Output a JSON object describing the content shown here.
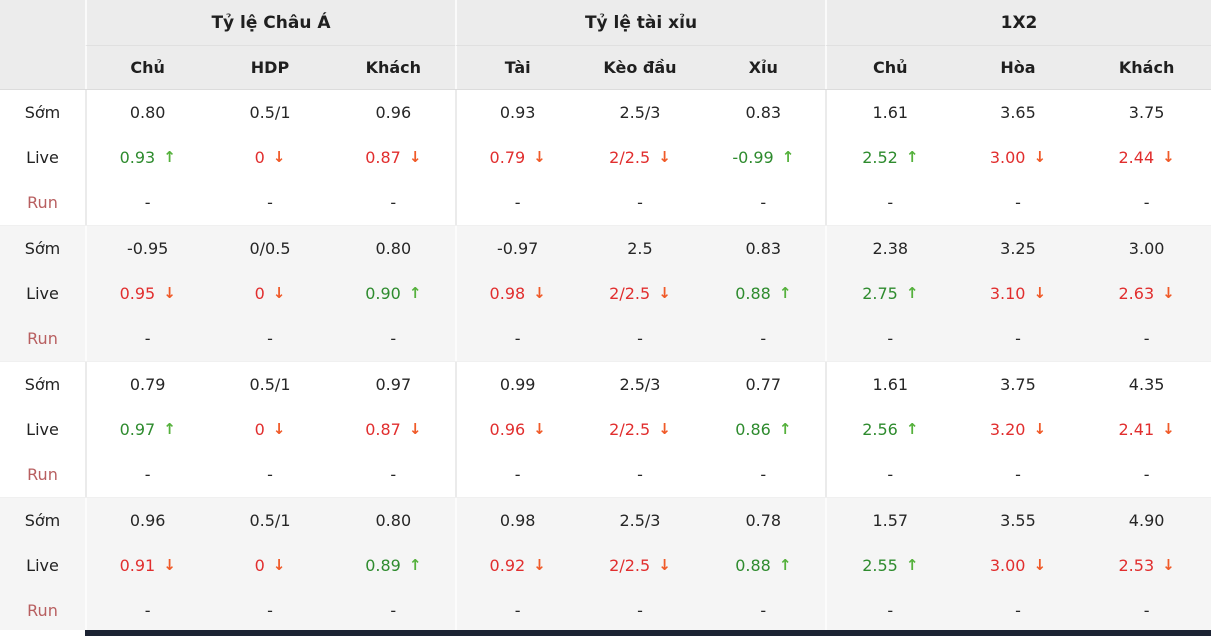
{
  "icons": {
    "up": "↑",
    "down": "↓"
  },
  "colors": {
    "up_text": "#2e8b2e",
    "up_arrow": "#55b13c",
    "down_text": "#e12e2e",
    "down_arrow": "#f05a28",
    "run_label": "#b85f60",
    "header_bg": "#ececec",
    "alt_block_bg": "#f5f5f5",
    "footer_bar": "#1c2333"
  },
  "table": {
    "groups": [
      {
        "label": "Tỷ lệ Châu Á",
        "columns": [
          "Chủ",
          "HDP",
          "Khách"
        ]
      },
      {
        "label": "Tỷ lệ tài xỉu",
        "columns": [
          "Tài",
          "Kèo đầu",
          "Xỉu"
        ]
      },
      {
        "label": "1X2",
        "columns": [
          "Chủ",
          "Hòa",
          "Khách"
        ]
      }
    ],
    "row_labels": {
      "som": "Sớm",
      "live": "Live",
      "run": "Run"
    },
    "blocks": [
      {
        "som": [
          "0.80",
          "0.5/1",
          "0.96",
          "0.93",
          "2.5/3",
          "0.83",
          "1.61",
          "3.65",
          "3.75"
        ],
        "live": [
          {
            "v": "0.93",
            "t": "up"
          },
          {
            "v": "0",
            "t": "down"
          },
          {
            "v": "0.87",
            "t": "down"
          },
          {
            "v": "0.79",
            "t": "down"
          },
          {
            "v": "2/2.5",
            "t": "down"
          },
          {
            "v": "-0.99",
            "t": "up"
          },
          {
            "v": "2.52",
            "t": "up"
          },
          {
            "v": "3.00",
            "t": "down"
          },
          {
            "v": "2.44",
            "t": "down"
          }
        ],
        "run": [
          "-",
          "-",
          "-",
          "-",
          "-",
          "-",
          "-",
          "-",
          "-"
        ]
      },
      {
        "som": [
          "-0.95",
          "0/0.5",
          "0.80",
          "-0.97",
          "2.5",
          "0.83",
          "2.38",
          "3.25",
          "3.00"
        ],
        "live": [
          {
            "v": "0.95",
            "t": "down"
          },
          {
            "v": "0",
            "t": "down"
          },
          {
            "v": "0.90",
            "t": "up"
          },
          {
            "v": "0.98",
            "t": "down"
          },
          {
            "v": "2/2.5",
            "t": "down"
          },
          {
            "v": "0.88",
            "t": "up"
          },
          {
            "v": "2.75",
            "t": "up"
          },
          {
            "v": "3.10",
            "t": "down"
          },
          {
            "v": "2.63",
            "t": "down"
          }
        ],
        "run": [
          "-",
          "-",
          "-",
          "-",
          "-",
          "-",
          "-",
          "-",
          "-"
        ]
      },
      {
        "som": [
          "0.79",
          "0.5/1",
          "0.97",
          "0.99",
          "2.5/3",
          "0.77",
          "1.61",
          "3.75",
          "4.35"
        ],
        "live": [
          {
            "v": "0.97",
            "t": "up"
          },
          {
            "v": "0",
            "t": "down"
          },
          {
            "v": "0.87",
            "t": "down"
          },
          {
            "v": "0.96",
            "t": "down"
          },
          {
            "v": "2/2.5",
            "t": "down"
          },
          {
            "v": "0.86",
            "t": "up"
          },
          {
            "v": "2.56",
            "t": "up"
          },
          {
            "v": "3.20",
            "t": "down"
          },
          {
            "v": "2.41",
            "t": "down"
          }
        ],
        "run": [
          "-",
          "-",
          "-",
          "-",
          "-",
          "-",
          "-",
          "-",
          "-"
        ]
      },
      {
        "som": [
          "0.96",
          "0.5/1",
          "0.80",
          "0.98",
          "2.5/3",
          "0.78",
          "1.57",
          "3.55",
          "4.90"
        ],
        "live": [
          {
            "v": "0.91",
            "t": "down"
          },
          {
            "v": "0",
            "t": "down"
          },
          {
            "v": "0.89",
            "t": "up"
          },
          {
            "v": "0.92",
            "t": "down"
          },
          {
            "v": "2/2.5",
            "t": "down"
          },
          {
            "v": "0.88",
            "t": "up"
          },
          {
            "v": "2.55",
            "t": "up"
          },
          {
            "v": "3.00",
            "t": "down"
          },
          {
            "v": "2.53",
            "t": "down"
          }
        ],
        "run": [
          "-",
          "-",
          "-",
          "-",
          "-",
          "-",
          "-",
          "-",
          "-"
        ]
      }
    ]
  }
}
